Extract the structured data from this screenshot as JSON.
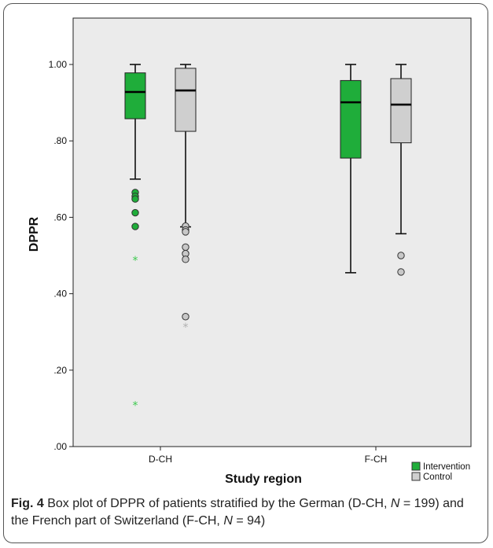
{
  "chart_data": {
    "type": "boxplot",
    "ylabel": "DPPR",
    "xlabel": "Study region",
    "ylim": [
      0.0,
      1.1
    ],
    "yticks": [
      {
        "value": 0.0,
        "label": ".00"
      },
      {
        "value": 0.2,
        "label": ".20"
      },
      {
        "value": 0.4,
        "label": ".40"
      },
      {
        "value": 0.6,
        "label": ".60"
      },
      {
        "value": 0.8,
        "label": ".80"
      },
      {
        "value": 1.0,
        "label": "1.00"
      }
    ],
    "categories": [
      "D-CH",
      "F-CH"
    ],
    "legend": [
      {
        "name": "Intervention",
        "color": "#1fad3a"
      },
      {
        "name": "Control",
        "color": "#cfcfcf"
      }
    ],
    "legend_position": "bottom-right",
    "grid": false,
    "boxes": [
      {
        "category": "D-CH",
        "series": "Intervention",
        "whisker_low": 0.7,
        "q1": 0.858,
        "median": 0.928,
        "q3": 0.978,
        "whisker_high": 1.0,
        "outliers": [
          0.665,
          0.655,
          0.648,
          0.612,
          0.576
        ],
        "extremes": [
          0.49,
          0.11
        ]
      },
      {
        "category": "D-CH",
        "series": "Control",
        "whisker_low": 0.575,
        "q1": 0.825,
        "median": 0.932,
        "q3": 0.99,
        "whisker_high": 1.0,
        "outliers": [
          0.577,
          0.567,
          0.562,
          0.522,
          0.505,
          0.49,
          0.34
        ],
        "extremes": [
          0.315
        ]
      },
      {
        "category": "F-CH",
        "series": "Intervention",
        "whisker_low": 0.455,
        "q1": 0.755,
        "median": 0.901,
        "q3": 0.958,
        "whisker_high": 1.0,
        "outliers": [],
        "extremes": []
      },
      {
        "category": "F-CH",
        "series": "Control",
        "whisker_low": 0.557,
        "q1": 0.795,
        "median": 0.895,
        "q3": 0.963,
        "whisker_high": 1.0,
        "outliers": [
          0.5,
          0.457
        ],
        "extremes": []
      }
    ]
  },
  "caption": {
    "label": "Fig. 4",
    "text_1": " Box plot of DPPR of patients stratified by the German (D-CH, ",
    "n_symbol_1": "N",
    "text_2": " = 199) and the French part of Switzerland (F-CH, ",
    "n_symbol_2": "N",
    "text_3": " = 94)"
  }
}
